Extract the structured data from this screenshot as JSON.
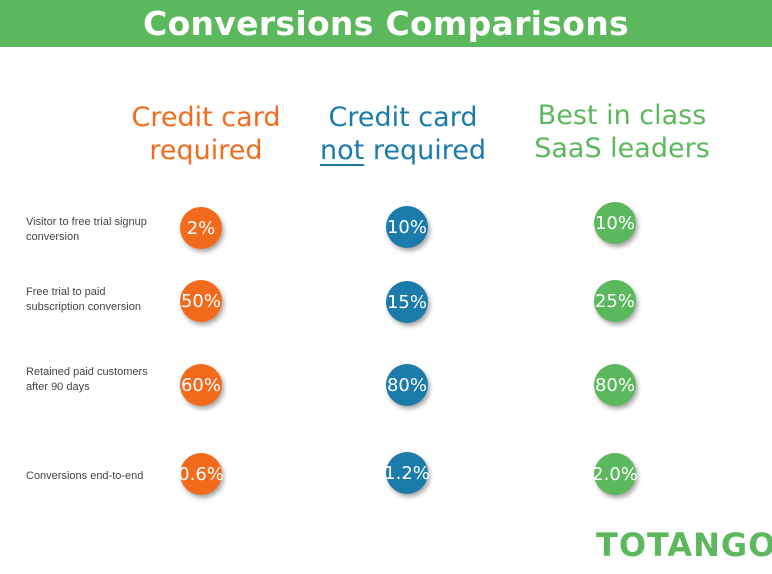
{
  "title": "Conversions Comparisons",
  "columns": [
    {
      "line1": "Credit card",
      "line2_pre": "",
      "line2_emph": "",
      "line2_post": "required",
      "color": "#f26b1d"
    },
    {
      "line1": "Credit card",
      "line2_pre": "",
      "line2_emph": "not",
      "line2_post": " required",
      "color": "#1b7bab"
    },
    {
      "line1": "Best in class",
      "line2_pre": "",
      "line2_emph": "",
      "line2_post": "SaaS leaders",
      "color": "#5cb85c"
    }
  ],
  "rows": [
    {
      "label": "Visitor to free trial signup conversion",
      "values": [
        "2%",
        "10%",
        "10%"
      ]
    },
    {
      "label": "Free trial to paid subscription conversion",
      "values": [
        "50%",
        "15%",
        "25%"
      ]
    },
    {
      "label": "Retained paid customers after 90 days",
      "values": [
        "60%",
        "80%",
        "80%"
      ]
    },
    {
      "label": "Conversions end-to-end",
      "values": [
        "0.6%",
        "1.2%",
        "2.0%"
      ]
    }
  ],
  "logo": "TOTANGO",
  "colors": {
    "header": "#5cb85c",
    "orange": "#f26b1d",
    "blue": "#1b7bab",
    "green": "#5cb85c"
  }
}
